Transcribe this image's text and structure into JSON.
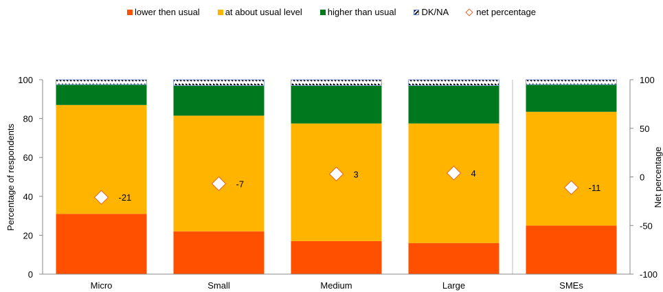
{
  "chart_data": {
    "type": "bar",
    "stacked": true,
    "categories": [
      "Micro",
      "Small",
      "Medium",
      "Large",
      "SMEs"
    ],
    "series": [
      {
        "name": "lower then usual",
        "color": "#ff5000",
        "values": [
          31,
          22,
          17,
          16,
          25
        ]
      },
      {
        "name": "at about usual level",
        "color": "#ffb400",
        "values": [
          56,
          59.5,
          60.5,
          61.5,
          58.5
        ]
      },
      {
        "name": "higher than usual",
        "color": "#00781e",
        "values": [
          10.5,
          15.5,
          19.5,
          19.5,
          14
        ]
      },
      {
        "name": "DK/NA",
        "color": "hatched",
        "values": [
          2.5,
          3,
          3,
          3,
          2.5
        ]
      }
    ],
    "net_series": {
      "name": "net percentage",
      "values": [
        -21,
        -7,
        3,
        4,
        -11
      ],
      "labels": [
        "-21",
        "-7",
        "3",
        "4",
        "-11"
      ]
    },
    "ylabel": "Percentage of respondents",
    "y2label": "Net percentage",
    "ylim": [
      0,
      100
    ],
    "y2lim": [
      -100,
      100
    ],
    "yticks": [
      "0",
      "20",
      "40",
      "60",
      "80",
      "100"
    ],
    "y2ticks": [
      "-100",
      "-50",
      "0",
      "50",
      "100"
    ],
    "legend_position": "top",
    "grid": false
  }
}
